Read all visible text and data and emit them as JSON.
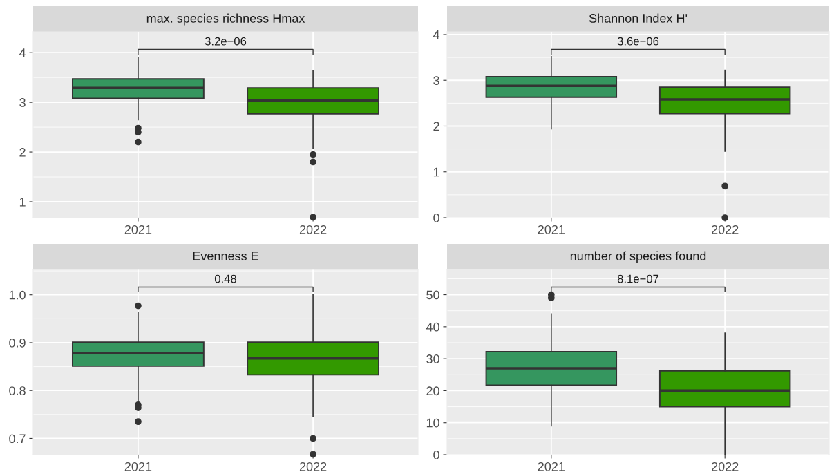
{
  "chart_data": [
    {
      "type": "box",
      "title": "max. species richness Hmax",
      "categories": [
        "2021",
        "2022"
      ],
      "colors": [
        "#35965f",
        "#339900"
      ],
      "ylim": [
        0.68,
        4.42
      ],
      "yticks": [
        1,
        2,
        3,
        4
      ],
      "grid": true,
      "annotations": [
        "3.2e−06"
      ],
      "boxes": [
        {
          "low": 2.65,
          "q1": 3.08,
          "median": 3.29,
          "q3": 3.47,
          "high": 3.9,
          "outliers": [
            2.48,
            2.4,
            2.2
          ]
        },
        {
          "low": 2.08,
          "q1": 2.77,
          "median": 3.04,
          "q3": 3.29,
          "high": 3.63,
          "outliers": [
            1.95,
            1.8,
            0.69
          ]
        }
      ]
    },
    {
      "type": "box",
      "title": "Shannon Index H'",
      "categories": [
        "2021",
        "2022"
      ],
      "colors": [
        "#35965f",
        "#339900"
      ],
      "ylim": [
        0,
        4.06
      ],
      "yticks": [
        0,
        1,
        2,
        3,
        4
      ],
      "grid": true,
      "annotations": [
        "3.6e−06"
      ],
      "boxes": [
        {
          "low": 1.94,
          "q1": 2.63,
          "median": 2.88,
          "q3": 3.08,
          "high": 3.52
        },
        {
          "low": 1.45,
          "q1": 2.27,
          "median": 2.58,
          "q3": 2.85,
          "high": 3.22,
          "outliers": [
            0.69,
            0
          ]
        }
      ]
    },
    {
      "type": "box",
      "title": "Evenness E",
      "categories": [
        "2021",
        "2022"
      ],
      "colors": [
        "#35965f",
        "#339900"
      ],
      "ylim": [
        0.666,
        1.053
      ],
      "yticks": [
        0.7,
        0.8,
        0.9,
        {
          "value": 1.0,
          "label": "1.0"
        }
      ],
      "grid": true,
      "annotations": [
        "0.48"
      ],
      "boxes": [
        {
          "low": 0.776,
          "q1": 0.851,
          "median": 0.878,
          "q3": 0.901,
          "high": 0.963,
          "outliers": [
            0.977,
            0.77,
            0.764,
            0.735
          ]
        },
        {
          "low": 0.746,
          "q1": 0.833,
          "median": 0.867,
          "q3": 0.901,
          "high": 1.0,
          "outliers": [
            0.7,
            0.667
          ]
        }
      ]
    },
    {
      "type": "box",
      "title": "number of species found",
      "categories": [
        "2021",
        "2022"
      ],
      "colors": [
        "#35965f",
        "#339900"
      ],
      "ylim": [
        0,
        57.9
      ],
      "yticks": [
        0,
        10,
        20,
        30,
        40,
        50
      ],
      "grid": true,
      "annotations": [
        "8.1e−07"
      ],
      "boxes": [
        {
          "low": 9,
          "q1": 21.7,
          "median": 27,
          "q3": 32.2,
          "high": 44,
          "outliers": [
            49,
            50
          ]
        },
        {
          "low": 0,
          "q1": 15,
          "median": 20,
          "q3": 26.2,
          "high": 38
        }
      ]
    }
  ]
}
